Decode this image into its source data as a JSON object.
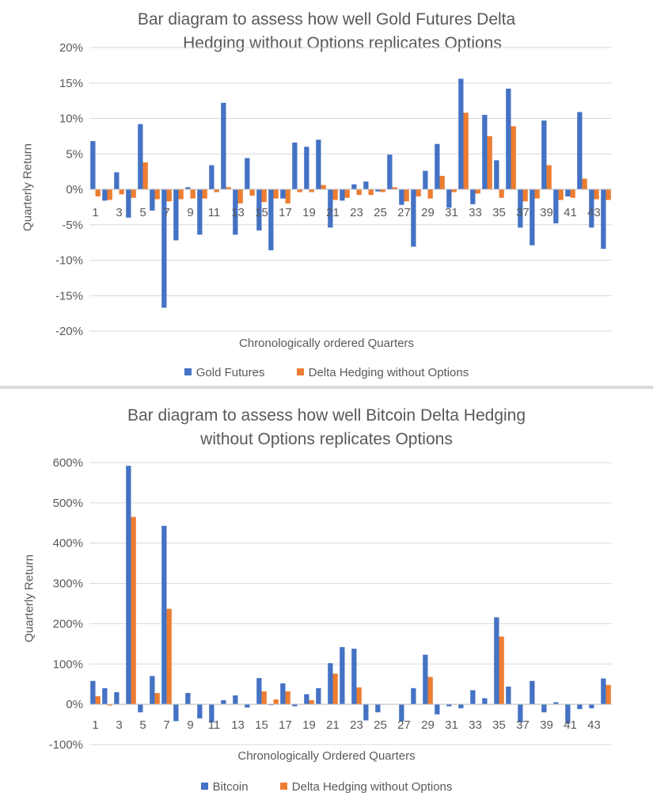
{
  "colors": {
    "series1": "#4472c4",
    "series2": "#ed7d31",
    "gridline": "#d9d9d9",
    "axis": "#bfbfbf",
    "text": "#595959"
  },
  "chart_data": [
    {
      "type": "bar",
      "title_line1": "Bar diagram to assess how well Gold Futures Delta",
      "title_line2": "Hedging without Options replicates Options",
      "xlabel": "Chronologically ordered Quarters",
      "ylabel": "Quarterly Return",
      "ylim": [
        -20,
        20
      ],
      "yticks": [
        20,
        15,
        10,
        5,
        0,
        -5,
        -10,
        -15,
        -20
      ],
      "ytick_labels": [
        "20%",
        "15%",
        "10%",
        "5%",
        "0%",
        "-5%",
        "-10%",
        "-15%",
        "-20%"
      ],
      "xtick_labels": [
        "1",
        "3",
        "5",
        "7",
        "9",
        "11",
        "13",
        "15",
        "17",
        "19",
        "21",
        "23",
        "25",
        "27",
        "29",
        "31",
        "33",
        "35",
        "37",
        "39",
        "41",
        "43"
      ],
      "categories": [
        "1",
        "2",
        "3",
        "4",
        "5",
        "6",
        "7",
        "8",
        "9",
        "10",
        "11",
        "12",
        "13",
        "14",
        "15",
        "16",
        "17",
        "18",
        "19",
        "20",
        "21",
        "22",
        "23",
        "24",
        "25",
        "26",
        "27",
        "28",
        "29",
        "30",
        "31",
        "32",
        "33",
        "34",
        "35",
        "36",
        "37",
        "38",
        "39",
        "40",
        "41",
        "42",
        "43",
        "44"
      ],
      "series": [
        {
          "name": "Gold Futures",
          "values": [
            6.8,
            -1.6,
            2.4,
            -4.0,
            9.2,
            -3.0,
            -16.7,
            -7.2,
            0.3,
            -6.4,
            3.4,
            12.2,
            -6.4,
            4.4,
            -5.8,
            -8.6,
            -1.3,
            6.6,
            6.0,
            7.0,
            -5.4,
            -1.6,
            0.7,
            1.1,
            -0.3,
            4.9,
            -2.2,
            -8.1,
            2.6,
            6.4,
            -2.6,
            15.6,
            -2.1,
            10.5,
            4.1,
            14.2,
            -5.4,
            -7.9,
            9.7,
            -4.8,
            -1.0,
            10.9,
            -5.4,
            -8.4
          ]
        },
        {
          "name": "Delta Hedging without Options",
          "values": [
            -1.0,
            -1.5,
            -0.7,
            -1.2,
            3.8,
            -1.4,
            -1.7,
            -1.4,
            -1.3,
            -1.3,
            -0.4,
            0.3,
            -2.0,
            -0.9,
            -1.8,
            -1.3,
            -2.0,
            -0.4,
            -0.4,
            0.6,
            -1.5,
            -1.2,
            -0.8,
            -0.8,
            -0.4,
            0.3,
            -1.7,
            -1.0,
            -1.3,
            1.9,
            -0.4,
            10.8,
            -0.6,
            7.5,
            -1.2,
            8.9,
            -1.7,
            -1.3,
            3.4,
            -1.5,
            -1.2,
            1.5,
            -1.4,
            -1.5
          ]
        }
      ],
      "legend": "bottom"
    },
    {
      "type": "bar",
      "title_line1": "Bar diagram to assess how well Bitcoin Delta Hedging",
      "title_line2": "without Options replicates Options",
      "xlabel": "Chronologically Ordered Quarters",
      "ylabel": "Quarterly Return",
      "ylim": [
        -100,
        600
      ],
      "yticks": [
        600,
        500,
        400,
        300,
        200,
        100,
        0,
        -100
      ],
      "ytick_labels": [
        "600%",
        "500%",
        "400%",
        "300%",
        "200%",
        "100%",
        "0%",
        "-100%"
      ],
      "xtick_labels": [
        "1",
        "3",
        "5",
        "7",
        "9",
        "11",
        "13",
        "15",
        "17",
        "19",
        "21",
        "23",
        "25",
        "27",
        "29",
        "31",
        "33",
        "35",
        "37",
        "39",
        "41",
        "43"
      ],
      "categories": [
        "1",
        "2",
        "3",
        "4",
        "5",
        "6",
        "7",
        "8",
        "9",
        "10",
        "11",
        "12",
        "13",
        "14",
        "15",
        "16",
        "17",
        "18",
        "19",
        "20",
        "21",
        "22",
        "23",
        "24",
        "25",
        "26",
        "27",
        "28",
        "29",
        "30",
        "31",
        "32",
        "33",
        "34",
        "35",
        "36",
        "37",
        "38",
        "39",
        "40",
        "41",
        "42",
        "43",
        "44"
      ],
      "series": [
        {
          "name": "Bitcoin",
          "values": [
            58,
            40,
            30,
            592,
            -20,
            70,
            443,
            -42,
            28,
            -35,
            -45,
            10,
            22,
            -8,
            65,
            -2,
            52,
            -5,
            25,
            40,
            102,
            142,
            138,
            -40,
            -20,
            0,
            -42,
            40,
            123,
            -25,
            -5,
            -10,
            35,
            15,
            216,
            44,
            -45,
            58,
            -20,
            5,
            -48,
            -12,
            -10,
            64
          ]
        },
        {
          "name": "Delta Hedging without Options",
          "values": [
            20,
            -3,
            0,
            465,
            0,
            28,
            237,
            0,
            0,
            0,
            0,
            0,
            0,
            0,
            32,
            12,
            32,
            0,
            10,
            0,
            76,
            0,
            42,
            0,
            0,
            0,
            0,
            0,
            68,
            0,
            0,
            0,
            0,
            0,
            168,
            0,
            0,
            0,
            0,
            0,
            0,
            0,
            0,
            48
          ]
        }
      ],
      "legend": "bottom"
    }
  ]
}
